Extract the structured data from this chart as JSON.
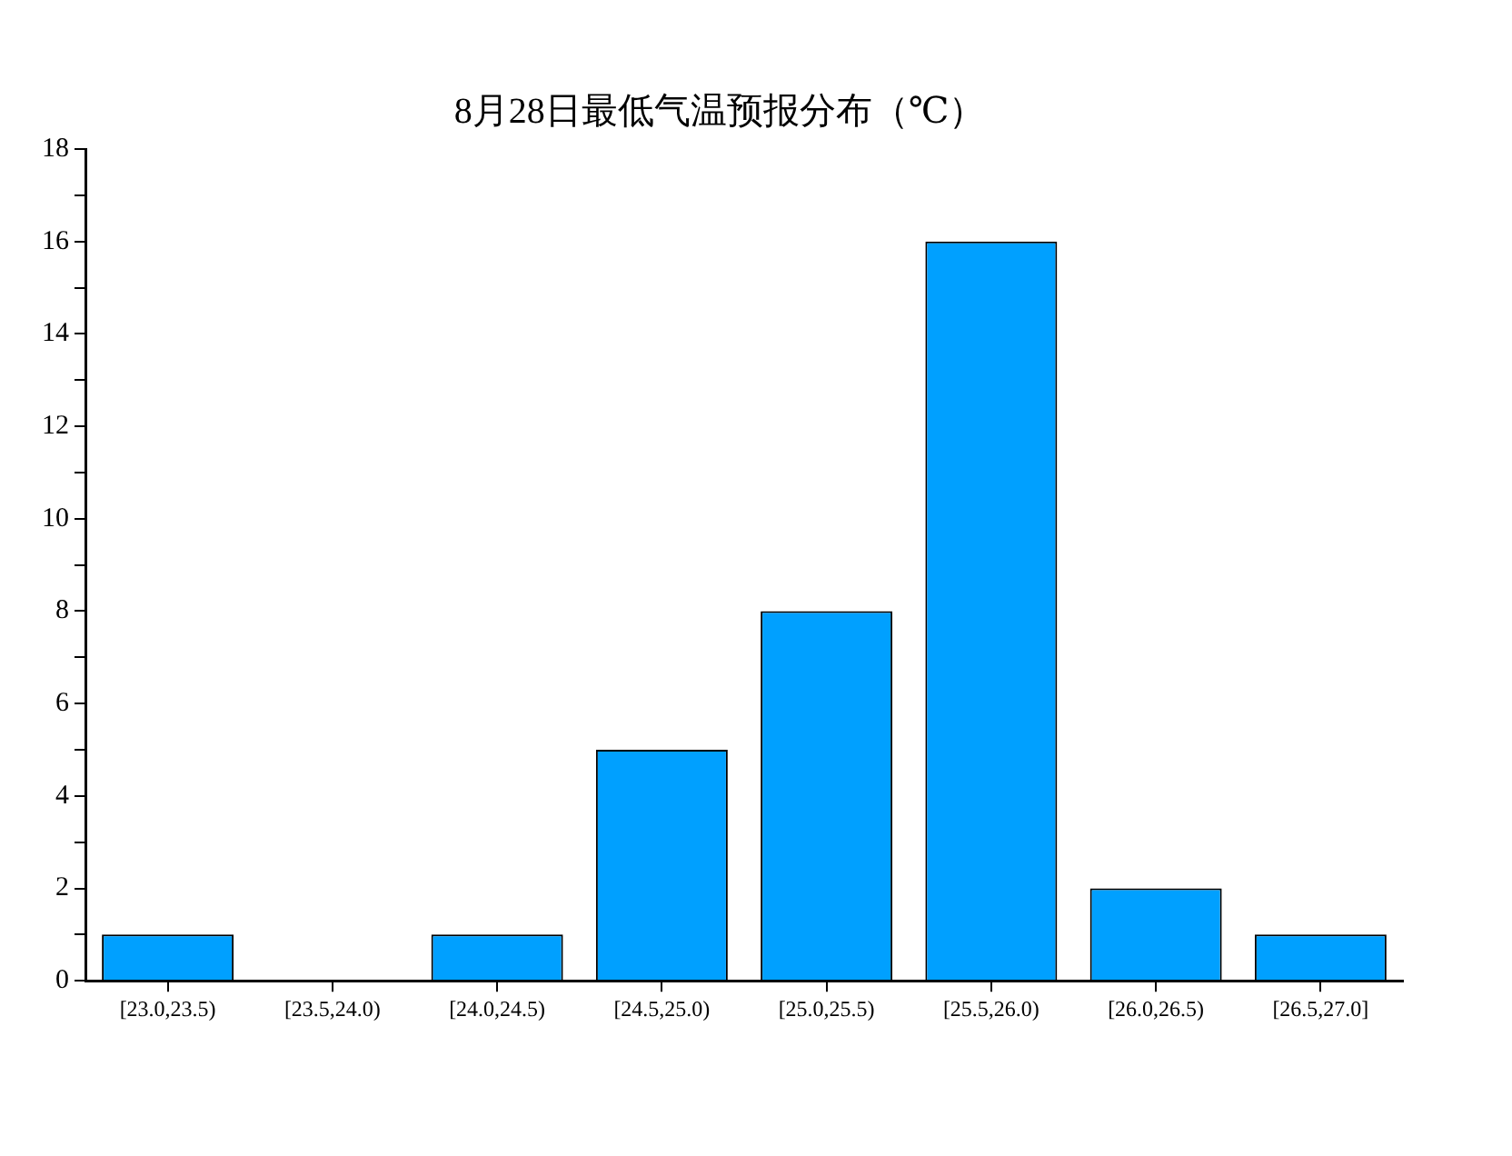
{
  "chart_data": {
    "type": "bar",
    "title": "8月28日最低气温预报分布（℃）",
    "categories": [
      "[23.0,23.5)",
      "[23.5,24.0)",
      "[24.0,24.5)",
      "[24.5,25.0)",
      "[25.0,25.5)",
      "[25.5,26.0)",
      "[26.0,26.5)",
      "[26.5,27.0]"
    ],
    "values": [
      1,
      0,
      1,
      5,
      8,
      16,
      2,
      1
    ],
    "color": "#00a0ff",
    "ylim": [
      0,
      18
    ],
    "yticks": [
      0,
      {
        "value": 1,
        "label": null
      },
      2,
      {
        "value": 3,
        "label": null
      },
      4,
      {
        "value": 5,
        "label": null
      },
      6,
      {
        "value": 7,
        "label": null
      },
      8,
      {
        "value": 9,
        "label": null
      },
      10,
      {
        "value": 11,
        "label": null
      },
      12,
      {
        "value": 13,
        "label": null
      },
      14,
      {
        "value": 15,
        "label": null
      },
      16,
      {
        "value": 17,
        "label": null
      },
      18
    ],
    "grid": false,
    "legend": false
  }
}
